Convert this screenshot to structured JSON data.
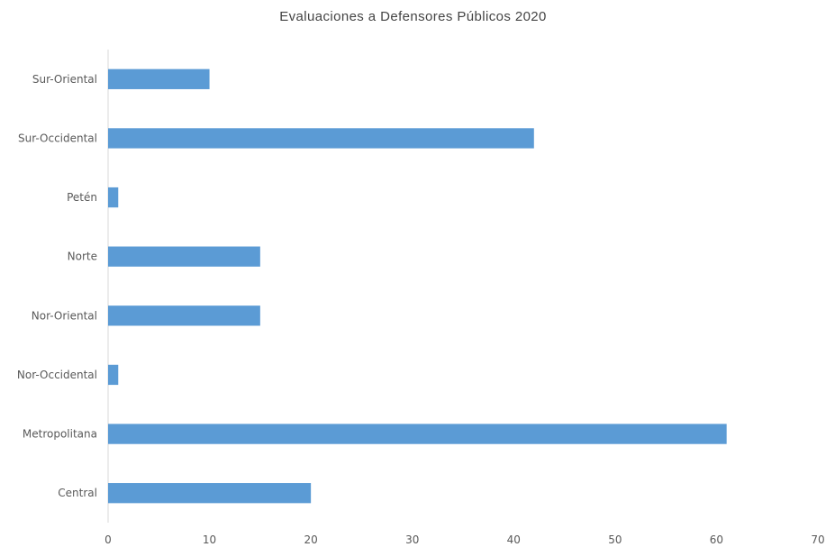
{
  "chart_data": {
    "type": "bar",
    "orientation": "horizontal",
    "title": "Evaluaciones a Defensores Públicos 2020",
    "categories": [
      "Central",
      "Metropolitana",
      "Nor-Occidental",
      "Nor-Oriental",
      "Norte",
      "Petén",
      "Sur-Occidental",
      "Sur-Oriental"
    ],
    "values": [
      20,
      61,
      1,
      15,
      15,
      1,
      42,
      10
    ],
    "xlim": [
      0,
      70
    ],
    "xticks": [
      0,
      10,
      20,
      30,
      40,
      50,
      60,
      70
    ],
    "grid": false,
    "bar_color": "#5B9BD5",
    "axis_color": "#D9D9D9"
  }
}
